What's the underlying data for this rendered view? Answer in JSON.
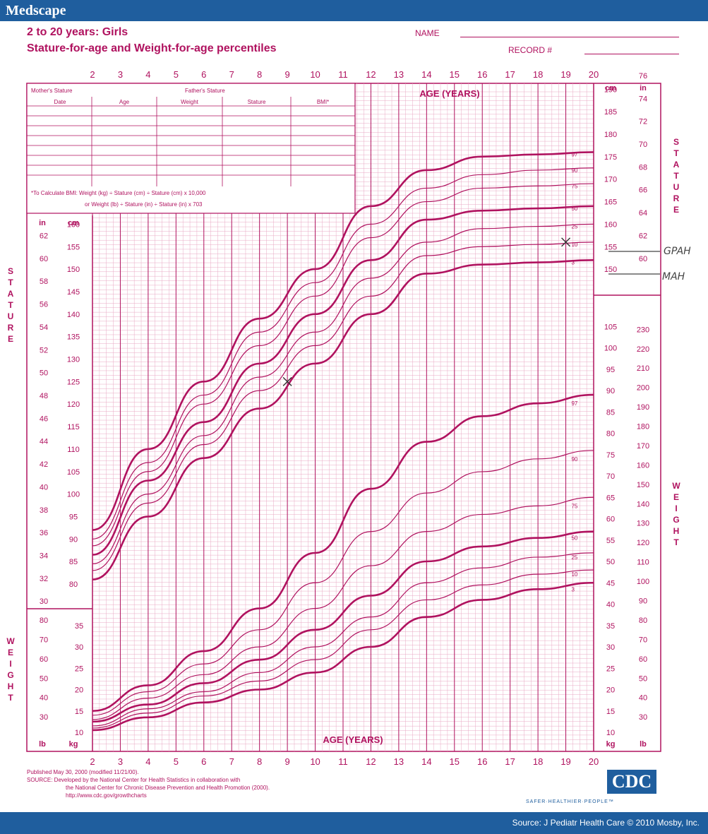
{
  "header": {
    "brand": "Medscape",
    "title": "2 to 20 years: Girls",
    "subtitle": "Stature-for-age and Weight-for-age percentiles",
    "name_label": "NAME",
    "record_label": "RECORD #"
  },
  "record_table": {
    "mothers_stature": "Mother's Stature",
    "fathers_stature": "Father's Stature",
    "columns": [
      "Date",
      "Age",
      "Weight",
      "Stature",
      "BMI*"
    ],
    "bmi_note_1": "*To Calculate BMI: Weight (kg) ÷ Stature (cm) ÷ Stature (cm) x 10,000",
    "bmi_note_2": "or Weight (lb) ÷ Stature (in) ÷ Stature (in) x 703"
  },
  "labels": {
    "age_years": "AGE (YEARS)",
    "stature": "STATURE",
    "weight": "WEIGHT",
    "cm": "cm",
    "in": "in",
    "kg": "kg",
    "lb": "lb",
    "annotation_gpah": "GPAH",
    "annotation_mah": "MAH"
  },
  "footer": {
    "line1": "Published May 30, 2000 (modified 11/21/00).",
    "line2": "SOURCE: Developed by the National Center for Health Statistics in collaboration with",
    "line3": "the National Center for Chronic Disease Prevention and Health Promotion (2000).",
    "line4": "http://www.cdc.gov/growthcharts",
    "cdc_logo": "CDC",
    "tagline": "SAFER·HEALTHIER·PEOPLE™",
    "source": "Source: J Pediatr Health Care © 2010 Mosby, Inc."
  },
  "colors": {
    "chart_line": "#b0125f",
    "grid": "#e9a9c4",
    "brand_blue": "#1f5e9e"
  },
  "chart_data": [
    {
      "type": "line",
      "name": "Stature-for-age",
      "x_ticks": [
        2,
        3,
        4,
        5,
        6,
        7,
        8,
        9,
        10,
        11,
        12,
        13,
        14,
        15,
        16,
        17,
        18,
        19,
        20
      ],
      "x": [
        2,
        4,
        6,
        8,
        10,
        12,
        14,
        16,
        18,
        20
      ],
      "xlim": [
        2,
        20
      ],
      "y_left_cm_ticks": [
        80,
        85,
        90,
        95,
        100,
        105,
        110,
        115,
        120,
        125,
        130,
        135,
        140,
        145,
        150,
        155,
        160
      ],
      "y_right_cm_ticks": [
        150,
        155,
        160,
        165,
        170,
        175,
        180,
        185,
        190
      ],
      "y_in_ticks_left": [
        30,
        32,
        34,
        36,
        38,
        40,
        42,
        44,
        46,
        48,
        50,
        52,
        54,
        56,
        58,
        60,
        62
      ],
      "y_in_ticks_right": [
        60,
        62,
        64,
        66,
        68,
        70,
        72,
        74,
        76
      ],
      "ylim": [
        78,
        198
      ],
      "series": [
        {
          "name": "97",
          "values": [
            92,
            110,
            125,
            139,
            150,
            164,
            172,
            175,
            175.5,
            176
          ]
        },
        {
          "name": "90",
          "values": [
            90,
            107,
            122,
            136,
            147,
            160,
            168,
            171,
            172,
            172.5
          ]
        },
        {
          "name": "75",
          "values": [
            88.5,
            105,
            120,
            133,
            144,
            157,
            165,
            168,
            168.5,
            169
          ]
        },
        {
          "name": "50",
          "values": [
            86.5,
            103,
            116,
            129,
            140,
            152,
            161,
            163,
            163.5,
            164
          ]
        },
        {
          "name": "25",
          "values": [
            84.5,
            100,
            113,
            126,
            136,
            148,
            156,
            159,
            159.5,
            160
          ]
        },
        {
          "name": "10",
          "values": [
            83,
            98,
            111,
            123,
            133,
            144,
            153,
            155,
            155.5,
            156
          ]
        },
        {
          "name": "3",
          "values": [
            81,
            95,
            108,
            119,
            129,
            140,
            149,
            151,
            151.5,
            152
          ]
        }
      ],
      "marks": [
        {
          "x": 9,
          "y": 125
        },
        {
          "x": 19,
          "y": 156
        }
      ]
    },
    {
      "type": "line",
      "name": "Weight-for-age",
      "x": [
        2,
        4,
        6,
        8,
        10,
        12,
        14,
        16,
        18,
        20
      ],
      "xlim": [
        2,
        20
      ],
      "y_left_kg_ticks": [
        10,
        15,
        20,
        25,
        30,
        35
      ],
      "y_right_kg_ticks": [
        10,
        15,
        20,
        25,
        30,
        35,
        40,
        45,
        50,
        55,
        60,
        65,
        70,
        75,
        80,
        85,
        90,
        95,
        100,
        105
      ],
      "y_left_lb_ticks": [
        30,
        40,
        50,
        60,
        70,
        80
      ],
      "y_right_lb_ticks": [
        30,
        40,
        50,
        60,
        70,
        80,
        90,
        100,
        110,
        120,
        130,
        140,
        150,
        160,
        170,
        180,
        190,
        200,
        210,
        220,
        230
      ],
      "ylim": [
        8,
        108
      ],
      "series": [
        {
          "name": "97",
          "values": [
            15,
            21,
            29,
            39,
            52,
            67,
            78,
            84,
            87,
            89
          ]
        },
        {
          "name": "90",
          "values": [
            14,
            19.5,
            26,
            34,
            45,
            57,
            66,
            71,
            74,
            76
          ]
        },
        {
          "name": "75",
          "values": [
            13,
            18,
            23.5,
            30,
            39,
            49,
            57,
            61,
            63,
            65
          ]
        },
        {
          "name": "50",
          "values": [
            12.5,
            16.5,
            21.5,
            27,
            34,
            42,
            50,
            53.5,
            55.5,
            57
          ]
        },
        {
          "name": "25",
          "values": [
            11.5,
            15.5,
            19.5,
            24,
            30,
            37,
            45,
            48.5,
            51,
            52
          ]
        },
        {
          "name": "10",
          "values": [
            11,
            14.5,
            18.5,
            22,
            27,
            34,
            41,
            44.5,
            47,
            48
          ]
        },
        {
          "name": "3",
          "values": [
            10.5,
            13.5,
            17,
            20,
            24,
            30,
            37,
            41,
            43.5,
            45
          ]
        }
      ]
    }
  ]
}
